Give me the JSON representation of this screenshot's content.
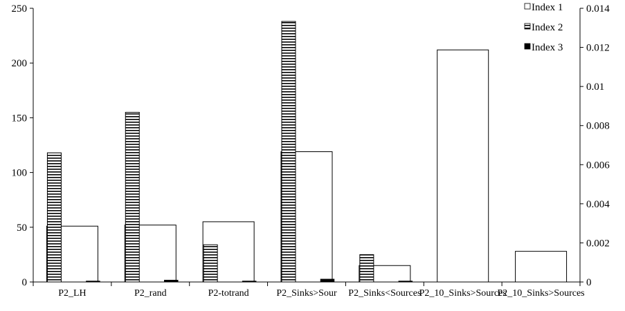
{
  "chart_data": {
    "type": "bar",
    "categories": [
      "P2_LH",
      "P2_rand",
      "P2-totrand",
      "P2_Sinks>Sour",
      "P2_Sinks<Sources",
      "P2_10_Sinks>Sources",
      "P2_10_Sinks>Sources"
    ],
    "series": [
      {
        "name": "Index 1",
        "axis": "left",
        "values": [
          51,
          52,
          55,
          119,
          15,
          212,
          28
        ]
      },
      {
        "name": "Index 2",
        "axis": "left",
        "values": [
          118,
          155,
          34,
          238,
          25,
          0,
          0
        ]
      },
      {
        "name": "Index 3",
        "axis": "right",
        "values": [
          5e-05,
          0.0001,
          2e-05,
          0.00015,
          2e-05,
          0,
          0
        ]
      }
    ],
    "left_axis": {
      "ylim": [
        0,
        250
      ],
      "ticks": [
        "0",
        "50",
        "100",
        "150",
        "200",
        "250"
      ]
    },
    "right_axis": {
      "ylim": [
        0,
        0.014
      ],
      "ticks": [
        "0",
        "0.002",
        "0.004",
        "0.006",
        "0.008",
        "0.01",
        "0.012",
        "0.014"
      ]
    },
    "legend": {
      "position": "top-right"
    },
    "grid": false,
    "colors": {
      "index1": "#ffffff",
      "index2": "#ffffff",
      "index3": "#000000",
      "stroke": "#000000"
    }
  }
}
